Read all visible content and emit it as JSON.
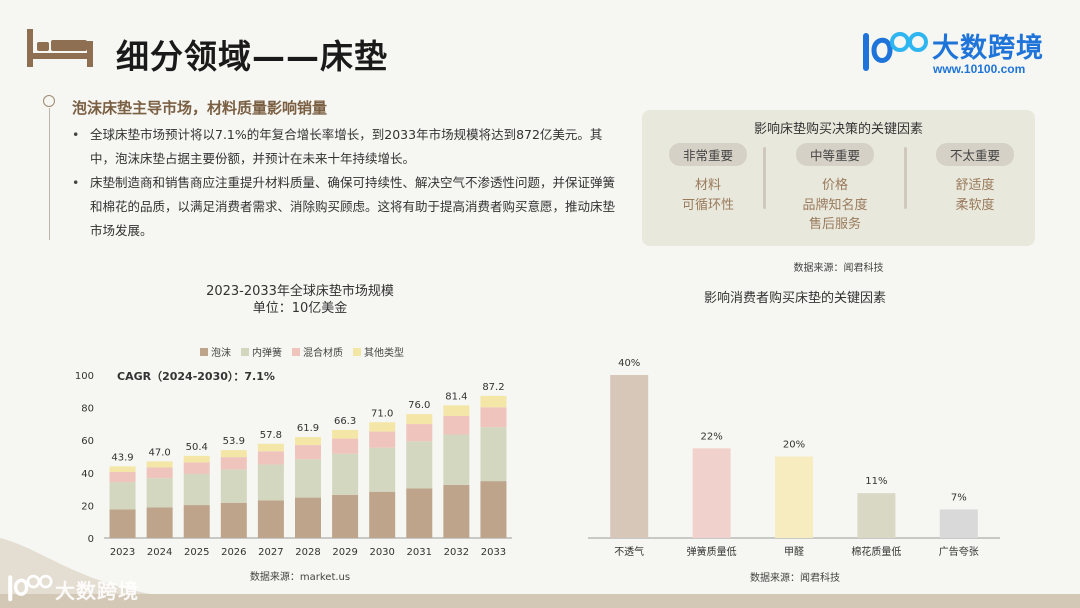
{
  "header": {
    "title": "细分领域——床垫",
    "logo_name": "大数跨境",
    "logo_url": "www.10100.com"
  },
  "intro": {
    "heading": "泡沫床垫主导市场，材料质量影响销量",
    "bullets": [
      "全球床垫市场预计将以7.1%的年复合增长率增长，到2033年市场规模将达到872亿美元。其中，泡沫床垫占据主要份额，并预计在未来十年持续增长。",
      "床垫制造商和销售商应注重提升材料质量、确保可持续性、解决空气不渗透性问题，并保证弹簧和棉花的品质，以满足消费者需求、消除购买顾虑。这将有助于提高消费者购买意愿，推动床垫市场发展。"
    ]
  },
  "factors": {
    "title": "影响床垫购买决策的关键因素",
    "columns": [
      {
        "label": "非常重要",
        "items": [
          "材料",
          "可循环性"
        ]
      },
      {
        "label": "中等重要",
        "items": [
          "价格",
          "品牌知名度",
          "售后服务"
        ]
      },
      {
        "label": "不太重要",
        "items": [
          "舒适度",
          "柔软度"
        ]
      }
    ],
    "source": "数据来源：闻君科技"
  },
  "chart1": {
    "title_line1": "2023-2033年全球床垫市场规模",
    "title_line2": "单位：10亿美金",
    "cagr": "CAGR（2024-2030）：7.1%",
    "source": "数据来源：market.us"
  },
  "chart2": {
    "title": "影响消费者购买床垫的关键因素",
    "source": "数据来源：闻君科技"
  },
  "footer": {
    "watermark": "大数跨境"
  },
  "colors": {
    "accent": "#7a5f43",
    "brand_blue": "#1e74d8",
    "foam": "#bda48a",
    "spring": "#d4d7bf",
    "hybrid": "#eec4bd",
    "other": "#f3e6a7"
  },
  "chart_data": [
    {
      "type": "bar",
      "stacked": true,
      "title": "2023-2033年全球床垫市场规模",
      "subtitle": "单位：10亿美金",
      "categories": [
        "2023",
        "2024",
        "2025",
        "2026",
        "2027",
        "2028",
        "2029",
        "2030",
        "2031",
        "2032",
        "2033"
      ],
      "totals": [
        43.9,
        47.0,
        50.4,
        53.9,
        57.8,
        61.9,
        66.3,
        71.0,
        76.0,
        81.4,
        87.2
      ],
      "series": [
        {
          "name": "泡沫",
          "color": "#bda48a",
          "values": [
            17.6,
            18.8,
            20.2,
            21.6,
            23.1,
            24.8,
            26.5,
            28.4,
            30.4,
            32.6,
            34.9
          ]
        },
        {
          "name": "内弹簧",
          "color": "#d4d7bf",
          "values": [
            16.7,
            17.9,
            19.1,
            20.5,
            22.0,
            23.5,
            25.2,
            27.0,
            28.9,
            30.9,
            33.1
          ]
        },
        {
          "name": "混合材质",
          "color": "#eec4bd",
          "values": [
            6.2,
            6.6,
            7.1,
            7.5,
            8.1,
            8.7,
            9.3,
            9.9,
            10.6,
            11.4,
            12.2
          ]
        },
        {
          "name": "其他类型",
          "color": "#f3e6a7",
          "values": [
            3.4,
            3.7,
            4.0,
            4.3,
            4.6,
            4.9,
            5.3,
            5.7,
            6.1,
            6.5,
            7.0
          ]
        }
      ],
      "ylim": [
        0,
        100
      ],
      "yticks": [
        0,
        20,
        40,
        60,
        80,
        100
      ],
      "legend": "top"
    },
    {
      "type": "bar",
      "title": "影响消费者购买床垫的关键因素",
      "categories": [
        "不透气",
        "弹簧质量低",
        "甲醛",
        "棉花质量低",
        "广告夸张"
      ],
      "values": [
        40,
        22,
        20,
        11,
        7
      ],
      "labels": [
        "40%",
        "22%",
        "20%",
        "11%",
        "7%"
      ],
      "colors": [
        "#d7c7b8",
        "#f1d1cb",
        "#f6ecbf",
        "#d8d8c5",
        "#d9d9d9"
      ],
      "ylim": [
        0,
        40
      ]
    }
  ]
}
